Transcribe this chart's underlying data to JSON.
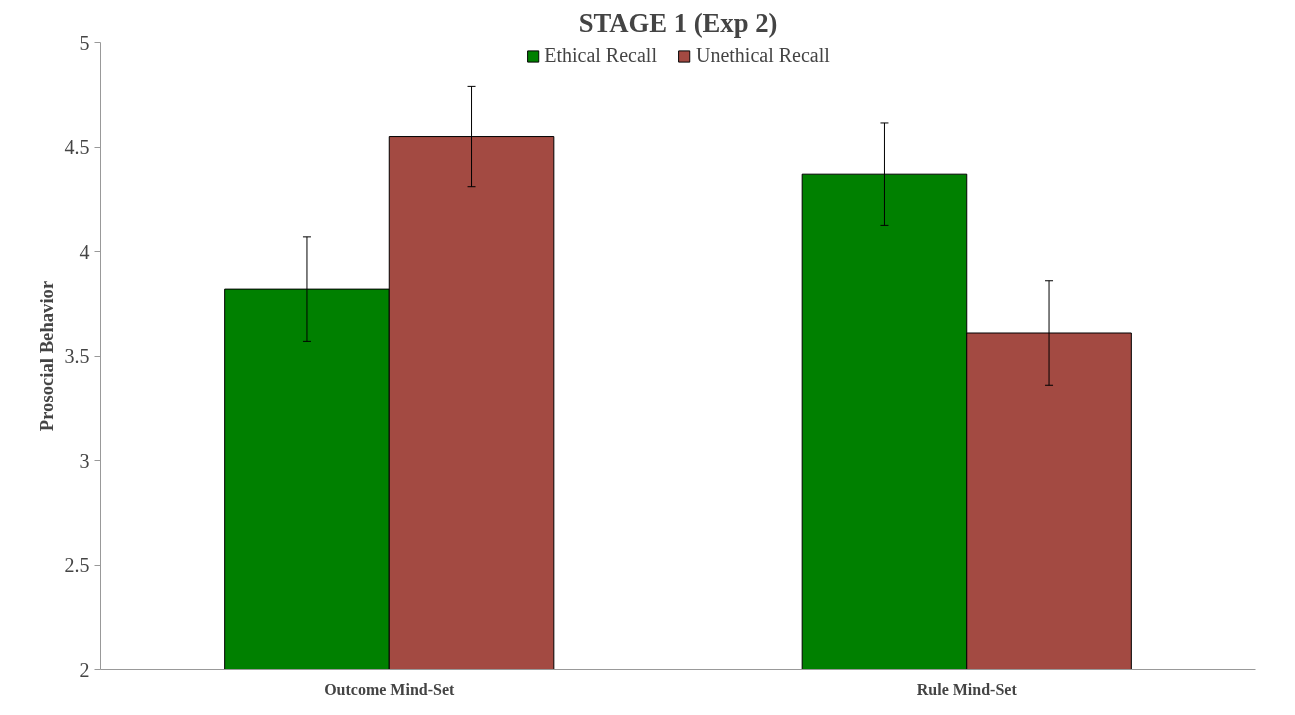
{
  "chart_data": {
    "type": "bar",
    "title": "STAGE 1 (Exp 2)",
    "ylabel": "Prosocial Behavior",
    "categories": [
      "Outcome Mind-Set",
      "Rule Mind-Set"
    ],
    "series": [
      {
        "name": "Ethical Recall",
        "color": "#008000",
        "values": [
          3.82,
          4.37
        ],
        "errors": [
          0.25,
          0.245
        ]
      },
      {
        "name": "Unethical Recall",
        "color": "#a34a42",
        "values": [
          4.55,
          3.61
        ],
        "errors": [
          0.24,
          0.25
        ]
      }
    ],
    "ylim": [
      2,
      5
    ],
    "yticks": [
      2,
      2.5,
      3,
      3.5,
      4,
      4.5,
      5
    ],
    "grid": false,
    "legend": "top"
  }
}
